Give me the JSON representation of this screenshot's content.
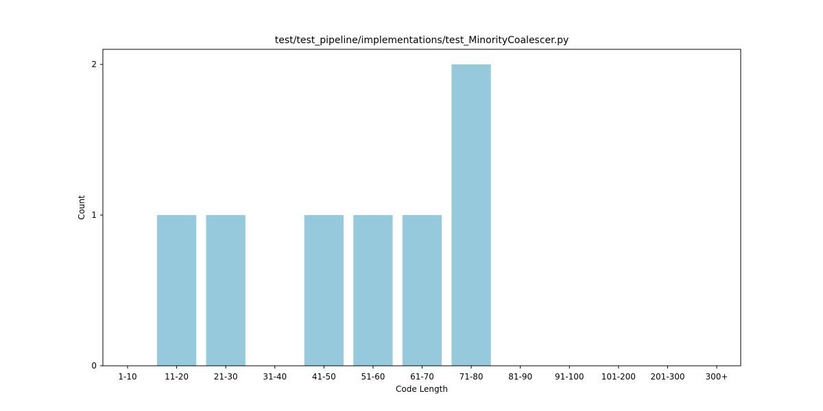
{
  "chart_data": {
    "type": "bar",
    "title": "test/test_pipeline/implementations/test_MinorityCoalescer.py",
    "xlabel": "Code Length",
    "ylabel": "Count",
    "categories": [
      "1-10",
      "11-20",
      "21-30",
      "31-40",
      "41-50",
      "51-60",
      "61-70",
      "71-80",
      "81-90",
      "91-100",
      "101-200",
      "201-300",
      "300+"
    ],
    "values": [
      0,
      1,
      1,
      0,
      1,
      1,
      1,
      2,
      0,
      0,
      0,
      0,
      0
    ],
    "ylim": [
      0,
      2.1
    ],
    "yticks": [
      0,
      1,
      2
    ],
    "bar_color": "#96c9dc",
    "grid": false,
    "legend": "none"
  }
}
